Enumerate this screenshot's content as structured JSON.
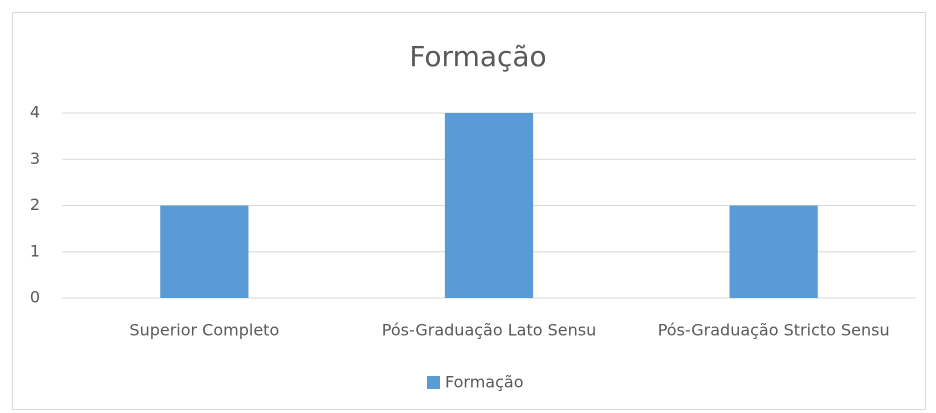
{
  "chart_data": {
    "type": "bar",
    "title": "Formação",
    "categories": [
      "Superior Completo",
      "Pós-Graduação Lato Sensu",
      "Pós-Graduação Stricto Sensu"
    ],
    "series": [
      {
        "name": "Formação",
        "color": "#5b9bd5",
        "values": [
          2,
          4,
          2
        ]
      }
    ],
    "ylim": [
      0,
      4
    ],
    "yticks": [
      0,
      1,
      2,
      3,
      4
    ],
    "grid": true,
    "legend": "bottom"
  }
}
